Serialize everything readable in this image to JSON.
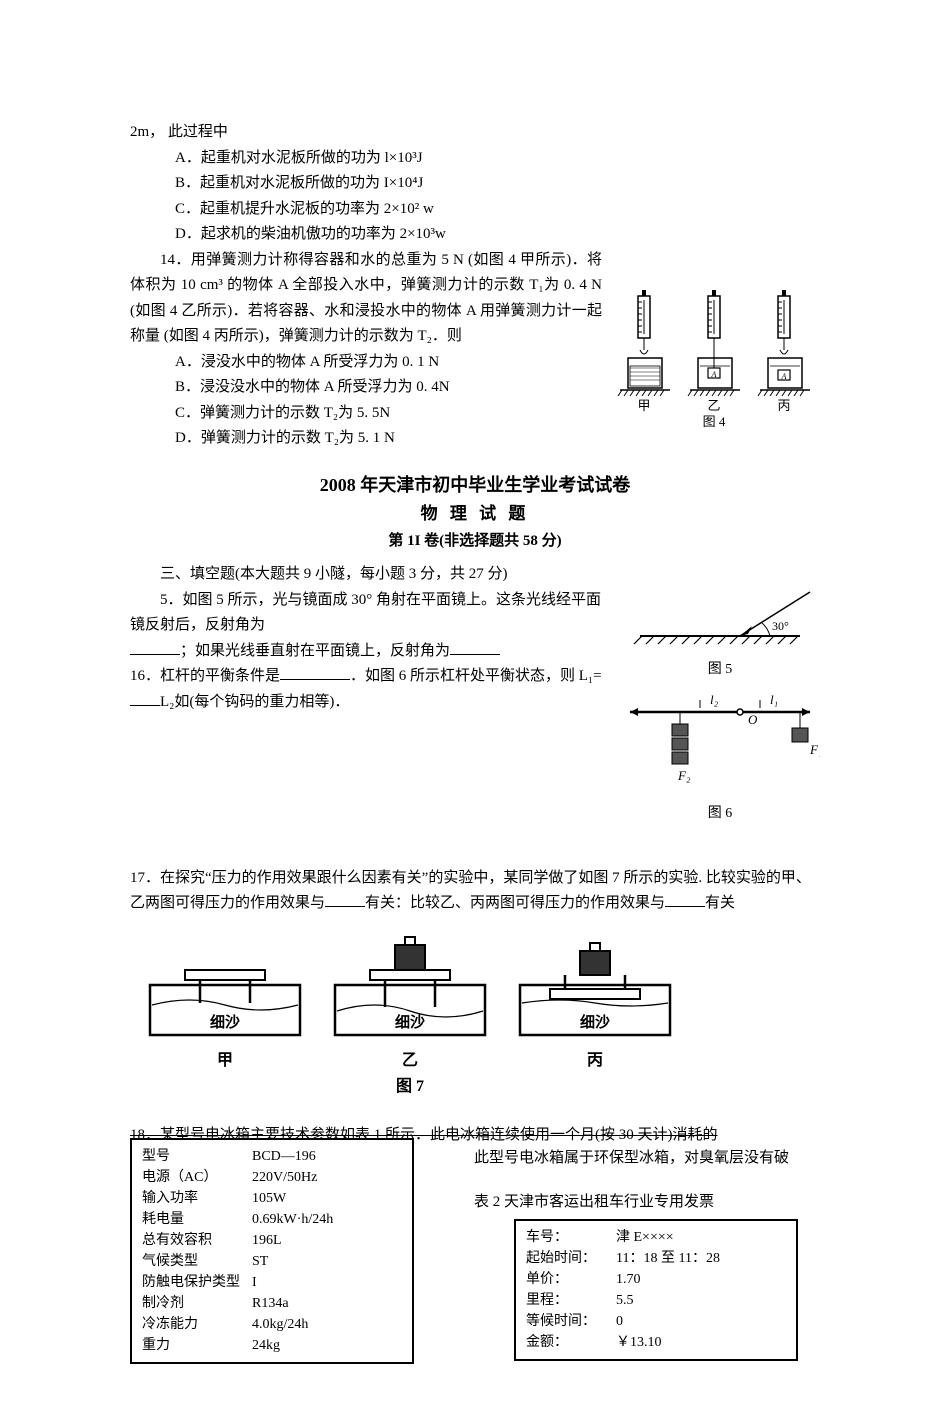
{
  "q13_prefix": "2m，  此过程中",
  "q13_options": {
    "A": "A．起重机对水泥板所做的功为 l×10³J",
    "B": "B．起重机对水泥板所做的功为 I×10⁴J",
    "C": "C．起重机提升水泥板的功率为 2×10² w",
    "D": "D．起求机的柴油机傲功的功率为 2×10³w"
  },
  "q14_text1": "14．用弹簧测力计称得容器和水的总重为 5 N (如图 4 甲所示)．将体积为 10 cm³ 的物体 A 全部投入水中，弹簧测力计的示数 T₁为 0. 4 N (如图 4 乙所示)．若将容器、水和浸投水中的物体 A 用弹簧测力计一起称量 (如图 4 丙所示)，弹簧测力计的示数为 T₂．则",
  "q14_options": {
    "A": "A．浸没水中的物体 A 所受浮力为 0. 1 N",
    "B": "B．浸没没水中的物体 A 所受浮力为 0. 4N",
    "C": "C．弹簧测力计的示数 T₂为 5. 5N",
    "D": "D．弹簧测力计的示数 T₂为 5. 1 N"
  },
  "fig4": {
    "labels": [
      "甲",
      "乙",
      "丙"
    ],
    "caption": "图 4"
  },
  "header": {
    "line1": "2008 年天津市初中毕业生学业考试试卷",
    "line2": "物 理 试 题",
    "line3": "第 1I 卷(非选择题共 58 分)"
  },
  "section3": "三、填空题(本大题共 9 小隧，每小题 3 分，共 27 分)",
  "q5_text_a": "5．如图 5 所示，光与镜面成 30° 角射在平面镜上。这条光线经平面镜反射后，反射角为",
  "q5_text_b": "；如果光线垂直射在平面镜上，反射角为",
  "fig5_caption": "图 5",
  "q16_text_a": "16．杠杆的平衡条件是",
  "q16_text_b": "．如图 6 所示杠杆处平衡状态，则 L₁=",
  "q16_text_c": "L₂如(每个钩码的重力相等)．",
  "fig6": {
    "caption": "图 6",
    "labels": {
      "l1": "l₁",
      "l2": "l₂",
      "O": "O",
      "F1": "F₁",
      "F2": "F₂"
    }
  },
  "q17_text_a": "17．在探究“压力的作用效果跟什么因素有关”的实验中，某同学做了如图 7 所示的实验. 比较实验的甲、乙两图可得压力的作用效果与",
  "q17_text_b": "有关：比较乙、丙两图可得压力的作用效果与",
  "q17_text_c": "有关",
  "fig7": {
    "sand": "细沙",
    "labels": [
      "甲",
      "乙",
      "丙"
    ],
    "caption": "图 7"
  },
  "q18_text_a": "18．某型号电冰箱主要技术参数如表 1 所示．此电冰箱连续使用一个月(按 30 天计)消耗的",
  "q18_text_b": "此型号电冰箱属于环保型冰箱，对臭氧层没有破",
  "table2_caption": "表 2 天津市客运出租车行业专用发票",
  "table1": [
    [
      "型号",
      "BCD—196"
    ],
    [
      "电源（AC）",
      "220V/50Hz"
    ],
    [
      "输入功率",
      "105W"
    ],
    [
      "耗电量",
      "0.69kW·h/24h"
    ],
    [
      "总有效容积",
      "196L"
    ],
    [
      "气候类型",
      "ST"
    ],
    [
      "防触电保护类型",
      "I"
    ],
    [
      "制冷剂",
      "R134a"
    ],
    [
      "冷冻能力",
      "4.0kg/24h"
    ],
    [
      "重力",
      "24kg"
    ]
  ],
  "table2": [
    [
      "车号：",
      "津 E××××"
    ],
    [
      "起始时间：",
      "11：18 至 11：28"
    ],
    [
      "单价：",
      "1.70"
    ],
    [
      "里程：",
      "5.5"
    ],
    [
      "等候时间：",
      "0"
    ],
    [
      "金额：",
      "￥13.10"
    ]
  ],
  "colors": {
    "text": "#000000",
    "bg": "#ffffff",
    "stroke": "#000000"
  }
}
